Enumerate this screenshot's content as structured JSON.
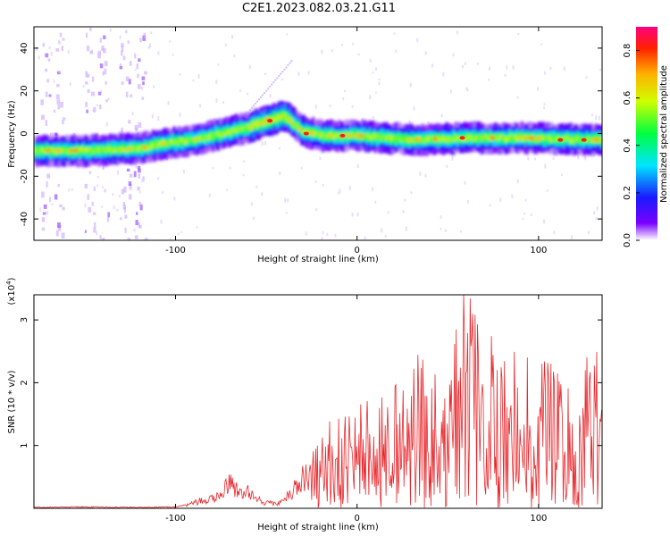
{
  "title": "C2E1.2023.082.03.21.G11",
  "chart_data": [
    {
      "type": "heatmap",
      "xlabel": "Height of straight line (km)",
      "ylabel": "Frequency (Hz)",
      "xlim": [
        -178,
        135
      ],
      "ylim": [
        -50,
        50
      ],
      "xticks": [
        -100,
        0,
        100
      ],
      "yticks": [
        -40,
        -20,
        0,
        20,
        40
      ],
      "xtick_labels": [
        "-100",
        "0",
        "100"
      ],
      "ytick_labels": [
        "-40",
        "-20",
        "0",
        "20",
        "40"
      ],
      "ridge": {
        "x": [
          -178,
          -150,
          -120,
          -110,
          -90,
          -75,
          -60,
          -50,
          -40,
          -30,
          -20,
          0,
          30,
          60,
          90,
          135
        ],
        "y": [
          -8,
          -8,
          -7,
          -5,
          -3,
          0,
          3,
          6,
          8,
          1,
          -1,
          -1,
          -3,
          -2,
          -2,
          -3
        ]
      },
      "peaks": {
        "x": [
          -48,
          -28,
          -8,
          58,
          112,
          125
        ],
        "y": [
          6,
          0,
          -1,
          -2,
          -3,
          -3
        ]
      },
      "colorbar": {
        "label": "Normalized spectral amplitude",
        "range": [
          0.0,
          0.9
        ],
        "ticks": [
          0.0,
          0.2,
          0.4,
          0.6,
          0.8
        ],
        "tick_labels": [
          "0.0",
          "0.2",
          "0.4",
          "0.6",
          "0.8"
        ]
      }
    },
    {
      "type": "line",
      "xlabel": "Height of straight line (km)",
      "ylabel": "SNR (10 * v/v)",
      "y_multiplier": "(x10",
      "y_exponent": "4",
      "y_multiplier_close": ")",
      "xlim": [
        -178,
        135
      ],
      "ylim": [
        0,
        3.4
      ],
      "xticks": [
        -100,
        0,
        100
      ],
      "yticks": [
        1,
        2,
        3
      ],
      "xtick_labels": [
        "-100",
        "0",
        "100"
      ],
      "ytick_labels": [
        "1",
        "2",
        "3"
      ],
      "series": [
        {
          "color": "#e8282d",
          "x": [
            -178,
            -150,
            -120,
            -100,
            -95,
            -85,
            -75,
            -70,
            -65,
            -60,
            -55,
            -50,
            -45,
            -40,
            -35,
            -30,
            -25,
            -20,
            -15,
            -10,
            -5,
            0,
            10,
            20,
            30,
            40,
            50,
            60,
            70,
            80,
            90,
            100,
            110,
            120,
            135
          ],
          "y": [
            0.02,
            0.03,
            0.02,
            0.03,
            0.06,
            0.18,
            0.3,
            0.6,
            0.35,
            0.4,
            0.2,
            0.12,
            0.1,
            0.2,
            0.4,
            0.7,
            0.9,
            1.1,
            1.35,
            1.4,
            1.55,
            1.7,
            1.6,
            1.85,
            2.3,
            2.5,
            2.7,
            3.4,
            2.7,
            2.5,
            2.75,
            2.5,
            2.3,
            2.55,
            2.6
          ]
        }
      ]
    }
  ]
}
